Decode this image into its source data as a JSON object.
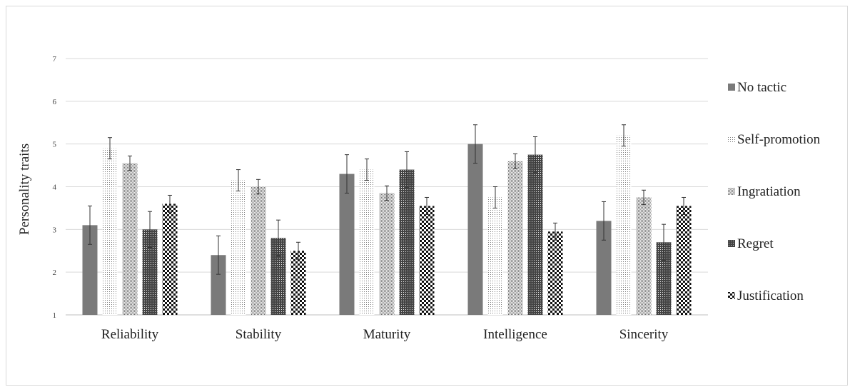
{
  "chart_data": {
    "type": "bar",
    "title": "",
    "xlabel": "",
    "ylabel": "Personality traits",
    "ylim": [
      1,
      7
    ],
    "yticks": [
      1,
      2,
      3,
      4,
      5,
      6,
      7
    ],
    "grid": true,
    "legend_position": "right",
    "categories": [
      "Reliability",
      "Stability",
      "Maturity",
      "Intelligence",
      "Sincerity"
    ],
    "series": [
      {
        "name": "No tactic",
        "values": [
          3.1,
          2.4,
          4.3,
          5.0,
          3.2
        ],
        "errors": [
          0.45,
          0.45,
          0.45,
          0.45,
          0.45
        ],
        "pattern": "solid"
      },
      {
        "name": "Self-promotion",
        "values": [
          4.9,
          4.15,
          4.4,
          3.75,
          5.2
        ],
        "errors": [
          0.25,
          0.25,
          0.25,
          0.25,
          0.25
        ],
        "pattern": "fine-dots"
      },
      {
        "name": "Ingratiation",
        "values": [
          4.55,
          4.0,
          3.85,
          4.6,
          3.75
        ],
        "errors": [
          0.17,
          0.17,
          0.17,
          0.17,
          0.17
        ],
        "pattern": "dense-dots"
      },
      {
        "name": "Regret",
        "values": [
          3.0,
          2.8,
          4.4,
          4.75,
          2.7
        ],
        "errors": [
          0.42,
          0.42,
          0.42,
          0.42,
          0.42
        ],
        "pattern": "dark-grid"
      },
      {
        "name": "Justification",
        "values": [
          3.6,
          2.5,
          3.55,
          2.95,
          3.55
        ],
        "errors": [
          0.2,
          0.2,
          0.2,
          0.2,
          0.2
        ],
        "pattern": "checker"
      }
    ]
  }
}
